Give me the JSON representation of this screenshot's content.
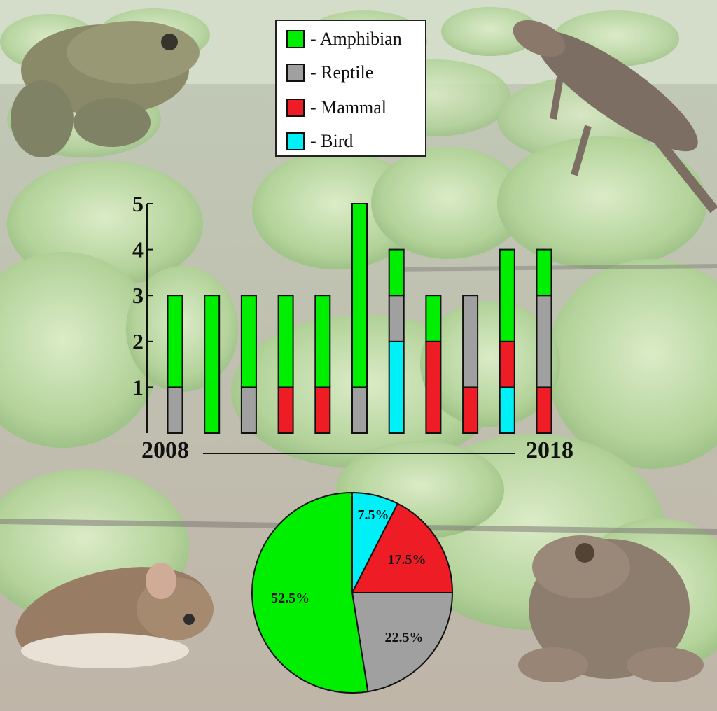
{
  "colors": {
    "Amphibian": "#00ee00",
    "Reptile": "#a0a0a0",
    "Mammal": "#ee1c24",
    "Bird": "#00f0f8"
  },
  "legend": {
    "entries": [
      "- Amphibian",
      "- Reptile",
      "- Mammal",
      "- Bird"
    ],
    "series_keys": [
      "Amphibian",
      "Reptile",
      "Mammal",
      "Bird"
    ],
    "placement": "top-center"
  },
  "background": {
    "scene": "lettuce-field",
    "animals": [
      "toad-icon",
      "lizard-icon",
      "mouse-icon",
      "frog-icon"
    ]
  },
  "chart_data": [
    {
      "type": "bar",
      "stacked": true,
      "categories": [
        "",
        "",
        "",
        "",
        "",
        "",
        "",
        "",
        "",
        "",
        ""
      ],
      "x_start_label": "2008",
      "x_end_label": "2018",
      "series": [
        {
          "name": "Bird",
          "values": [
            0,
            0,
            0,
            0,
            0,
            0,
            2,
            0,
            0,
            1,
            0
          ]
        },
        {
          "name": "Mammal",
          "values": [
            0,
            0,
            0,
            1,
            1,
            0,
            0,
            2,
            1,
            1,
            1
          ]
        },
        {
          "name": "Reptile",
          "values": [
            1,
            0,
            1,
            0,
            0,
            1,
            1,
            0,
            2,
            0,
            2
          ]
        },
        {
          "name": "Amphibian",
          "values": [
            2,
            3,
            2,
            2,
            2,
            4,
            1,
            1,
            0,
            2,
            1
          ]
        }
      ],
      "ylim": [
        0,
        5
      ],
      "yticks": [
        "1",
        "2",
        "3",
        "4",
        "5"
      ],
      "grid": false
    },
    {
      "type": "pie",
      "labels": [
        "Amphibian",
        "Reptile",
        "Mammal",
        "Bird"
      ],
      "values": [
        52.5,
        22.5,
        17.5,
        7.5
      ],
      "value_labels": [
        "52.5%",
        "22.5%",
        "17.5%",
        "7.5%"
      ]
    }
  ]
}
